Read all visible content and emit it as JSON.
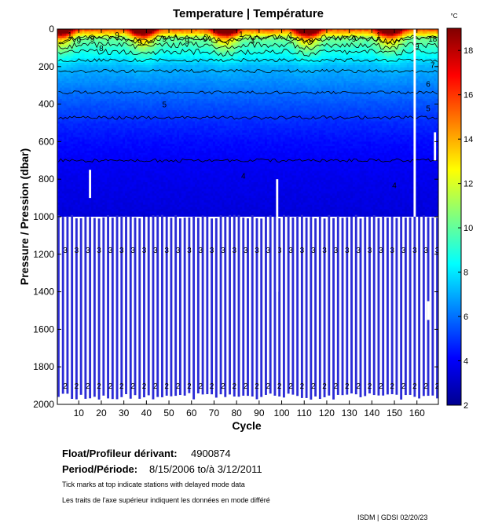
{
  "chart_data": {
    "type": "heatmap",
    "title": "Temperature | Température",
    "xlabel": "Cycle",
    "ylabel": "Pressure / Pression (dbar)",
    "colorbar_unit": "°C",
    "x_range": [
      1,
      169
    ],
    "y_range": [
      0,
      2000
    ],
    "x_ticks": [
      10,
      20,
      30,
      40,
      50,
      60,
      70,
      80,
      90,
      100,
      110,
      120,
      130,
      140,
      150,
      160
    ],
    "y_ticks": [
      0,
      200,
      400,
      600,
      800,
      1000,
      1200,
      1400,
      1600,
      1800,
      2000
    ],
    "colorbar_range": [
      2,
      19
    ],
    "colorbar_ticks": [
      2,
      4,
      6,
      8,
      10,
      12,
      14,
      16,
      18
    ],
    "contour_levels": [
      2,
      3,
      4,
      5,
      6,
      7,
      8,
      9,
      10,
      11,
      12
    ],
    "temperature_profile": [
      {
        "pressure": 0,
        "temp": 17.5
      },
      {
        "pressure": 50,
        "temp": 11
      },
      {
        "pressure": 100,
        "temp": 9.5
      },
      {
        "pressure": 200,
        "temp": 7.2
      },
      {
        "pressure": 300,
        "temp": 6.3
      },
      {
        "pressure": 400,
        "temp": 5.5
      },
      {
        "pressure": 500,
        "temp": 4.8
      },
      {
        "pressure": 600,
        "temp": 4.3
      },
      {
        "pressure": 700,
        "temp": 4.0
      },
      {
        "pressure": 800,
        "temp": 3.8
      },
      {
        "pressure": 1000,
        "temp": 3.5
      },
      {
        "pressure": 1200,
        "temp": 3.2
      },
      {
        "pressure": 1500,
        "temp": 2.9
      },
      {
        "pressure": 1800,
        "temp": 2.5
      },
      {
        "pressure": 2000,
        "temp": 2.3
      }
    ],
    "deep_profile_start_pressure": 1000,
    "contour_labels": [
      {
        "cycle": 6,
        "pressure": 30,
        "text": "1"
      },
      {
        "cycle": 10,
        "pressure": 60,
        "text": "9"
      },
      {
        "cycle": 16,
        "pressure": 50,
        "text": "9"
      },
      {
        "cycle": 20,
        "pressure": 100,
        "text": "8"
      },
      {
        "cycle": 27,
        "pressure": 30,
        "text": "9"
      },
      {
        "cycle": 37,
        "pressure": 70,
        "text": "9"
      },
      {
        "cycle": 48,
        "pressure": 50,
        "text": "9"
      },
      {
        "cycle": 58,
        "pressure": 60,
        "text": "9"
      },
      {
        "cycle": 66,
        "pressure": 50,
        "text": "9"
      },
      {
        "cycle": 82,
        "pressure": 25,
        "text": "1"
      },
      {
        "cycle": 87,
        "pressure": 60,
        "text": "3"
      },
      {
        "cycle": 104,
        "pressure": 30,
        "text": "1"
      },
      {
        "cycle": 113,
        "pressure": 60,
        "text": "8"
      },
      {
        "cycle": 132,
        "pressure": 50,
        "text": "9"
      },
      {
        "cycle": 143,
        "pressure": 30,
        "text": "1"
      },
      {
        "cycle": 160,
        "pressure": 90,
        "text": "9"
      },
      {
        "cycle": 167,
        "pressure": 50,
        "text": "18"
      },
      {
        "cycle": 167,
        "pressure": 190,
        "text": "7"
      },
      {
        "cycle": 165,
        "pressure": 290,
        "text": "6"
      },
      {
        "cycle": 165,
        "pressure": 420,
        "text": "5"
      },
      {
        "cycle": 48,
        "pressure": 400,
        "text": "5"
      },
      {
        "cycle": 83,
        "pressure": 780,
        "text": "4"
      },
      {
        "cycle": 150,
        "pressure": 830,
        "text": "4"
      }
    ],
    "label_rows": [
      {
        "pressure": 1175,
        "text": "3"
      },
      {
        "pressure": 1900,
        "text": "2"
      }
    ]
  },
  "info": {
    "float_label": "Float/Profileur dérivant:",
    "float_value": "4900874",
    "period_label": "Period/Période:",
    "period_value": "8/15/2006  to/à  3/12/2011",
    "note_en": "Tick marks at top indicate stations with delayed mode data",
    "note_fr": "Les traits de l'axe supérieur indiquent les données en mode différé",
    "credit": "ISDM | GDSI  02/20/23"
  },
  "colors": {
    "axis": "#000000",
    "deep_stripe": "#2b2bd6",
    "background": "#ffffff"
  }
}
